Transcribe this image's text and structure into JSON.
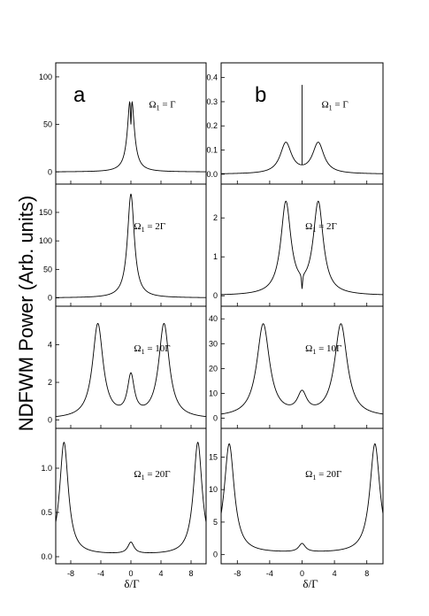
{
  "figure": {
    "ylabel": "NDFWM Power (Arb. units)",
    "columns": [
      {
        "letter": "a",
        "xlabel": "δ/Γ",
        "xticks": [
          "-8",
          "-4",
          "0",
          "4",
          "8"
        ]
      },
      {
        "letter": "b",
        "xlabel": "δ/Γ",
        "xticks": [
          "-8",
          "-4",
          "0",
          "4",
          "8"
        ]
      }
    ]
  },
  "chart_data": [
    {
      "type": "line",
      "column": "a",
      "row": 1,
      "annotation": "Ω₁ = Γ",
      "panel_letter": "a",
      "xlim": [
        -10,
        10
      ],
      "ylim": [
        -10,
        112
      ],
      "yticks": [
        "0",
        "50",
        "100"
      ],
      "peaks": [
        {
          "x": 0,
          "y": 98,
          "w": 0.45
        }
      ],
      "dip": {
        "x": 0,
        "depth": 48,
        "w": 0.1
      },
      "baseline": 0
    },
    {
      "type": "line",
      "column": "a",
      "row": 2,
      "annotation": "Ω₁ = 2Γ",
      "xlim": [
        -10,
        10
      ],
      "ylim": [
        -10,
        195
      ],
      "yticks": [
        "0",
        "50",
        "100",
        "150"
      ],
      "peaks": [
        {
          "x": 0,
          "y": 182,
          "w": 0.55
        }
      ],
      "baseline": 0
    },
    {
      "type": "line",
      "column": "a",
      "row": 3,
      "annotation": "Ω₁ = 10Γ",
      "xlim": [
        -10,
        10
      ],
      "ylim": [
        -0.3,
        5.9
      ],
      "yticks": [
        "0",
        "2",
        "4"
      ],
      "peaks": [
        {
          "x": -4.4,
          "y": 5.05,
          "w": 0.85
        },
        {
          "x": 0,
          "y": 2.15,
          "w": 0.55
        },
        {
          "x": 4.4,
          "y": 5.05,
          "w": 0.85
        }
      ],
      "baseline": 0.05
    },
    {
      "type": "line",
      "column": "a",
      "row": 4,
      "annotation": "Ω₁ = 20Γ",
      "xlim": [
        -10,
        10
      ],
      "ylim": [
        -0.05,
        1.42
      ],
      "yticks": [
        "0.0",
        "0.5",
        "1.0"
      ],
      "peaks": [
        {
          "x": -8.9,
          "y": 1.29,
          "w": 0.7
        },
        {
          "x": 0,
          "y": 0.15,
          "w": 0.5
        },
        {
          "x": 8.9,
          "y": 1.29,
          "w": 0.7
        }
      ],
      "baseline": 0.02
    },
    {
      "type": "line",
      "column": "b",
      "row": 1,
      "annotation": "Ω₁ = Γ",
      "panel_letter": "b",
      "xlim": [
        -10,
        10
      ],
      "ylim": [
        -0.03,
        0.45
      ],
      "yticks": [
        "0.0",
        "0.1",
        "0.2",
        "0.3",
        "0.4"
      ],
      "peaks": [
        {
          "x": -2,
          "y": 0.127,
          "w": 0.85
        },
        {
          "x": 2,
          "y": 0.127,
          "w": 0.85
        }
      ],
      "spike": {
        "x": 0,
        "y": 0.37
      },
      "baseline": 0.0
    },
    {
      "type": "line",
      "column": "b",
      "row": 2,
      "annotation": "Ω₁ = 2Γ",
      "xlim": [
        -10,
        10
      ],
      "ylim": [
        -0.2,
        2.8
      ],
      "yticks": [
        "0",
        "1",
        "2"
      ],
      "peaks": [
        {
          "x": -2,
          "y": 2.35,
          "w": 0.75
        },
        {
          "x": 2,
          "y": 2.35,
          "w": 0.75
        }
      ],
      "dip": {
        "x": 0,
        "depth": 0.4,
        "w": 0.08
      },
      "baseline": 0.0
    },
    {
      "type": "line",
      "column": "b",
      "row": 3,
      "annotation": "Ω₁ = 10Γ",
      "xlim": [
        -10,
        10
      ],
      "ylim": [
        -3,
        44
      ],
      "yticks": [
        "0",
        "10",
        "20",
        "30",
        "40"
      ],
      "peaks": [
        {
          "x": -4.8,
          "y": 37.5,
          "w": 0.95
        },
        {
          "x": 0,
          "y": 8.5,
          "w": 0.7
        },
        {
          "x": 4.8,
          "y": 37.5,
          "w": 0.95
        }
      ],
      "baseline": 0.3
    },
    {
      "type": "line",
      "column": "b",
      "row": 4,
      "annotation": "Ω₁ = 20Γ",
      "xlim": [
        -10,
        10
      ],
      "ylim": [
        -1,
        19
      ],
      "yticks": [
        "0",
        "5",
        "10",
        "15"
      ],
      "peaks": [
        {
          "x": -9,
          "y": 17,
          "w": 0.75
        },
        {
          "x": 0,
          "y": 1.5,
          "w": 0.5
        },
        {
          "x": 9,
          "y": 17,
          "w": 0.75
        }
      ],
      "baseline": 0.2
    }
  ]
}
